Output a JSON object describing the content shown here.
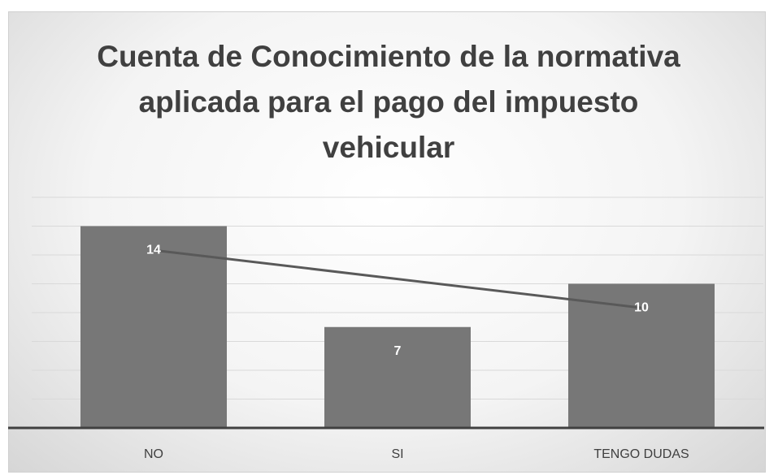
{
  "chart_data": {
    "type": "bar",
    "title": "Cuenta de Conocimiento de la normativa aplicada para el pago del impuesto vehicular",
    "categories": [
      "NO",
      "SI",
      "TENGO DUDAS"
    ],
    "values": [
      14,
      7,
      10
    ],
    "color": "#777777",
    "ylim": [
      0,
      16
    ],
    "yticks": [
      0,
      2,
      4,
      6,
      8,
      10,
      12,
      14,
      16
    ],
    "grid": true,
    "trendline": true,
    "trendline_color": "#595959"
  }
}
